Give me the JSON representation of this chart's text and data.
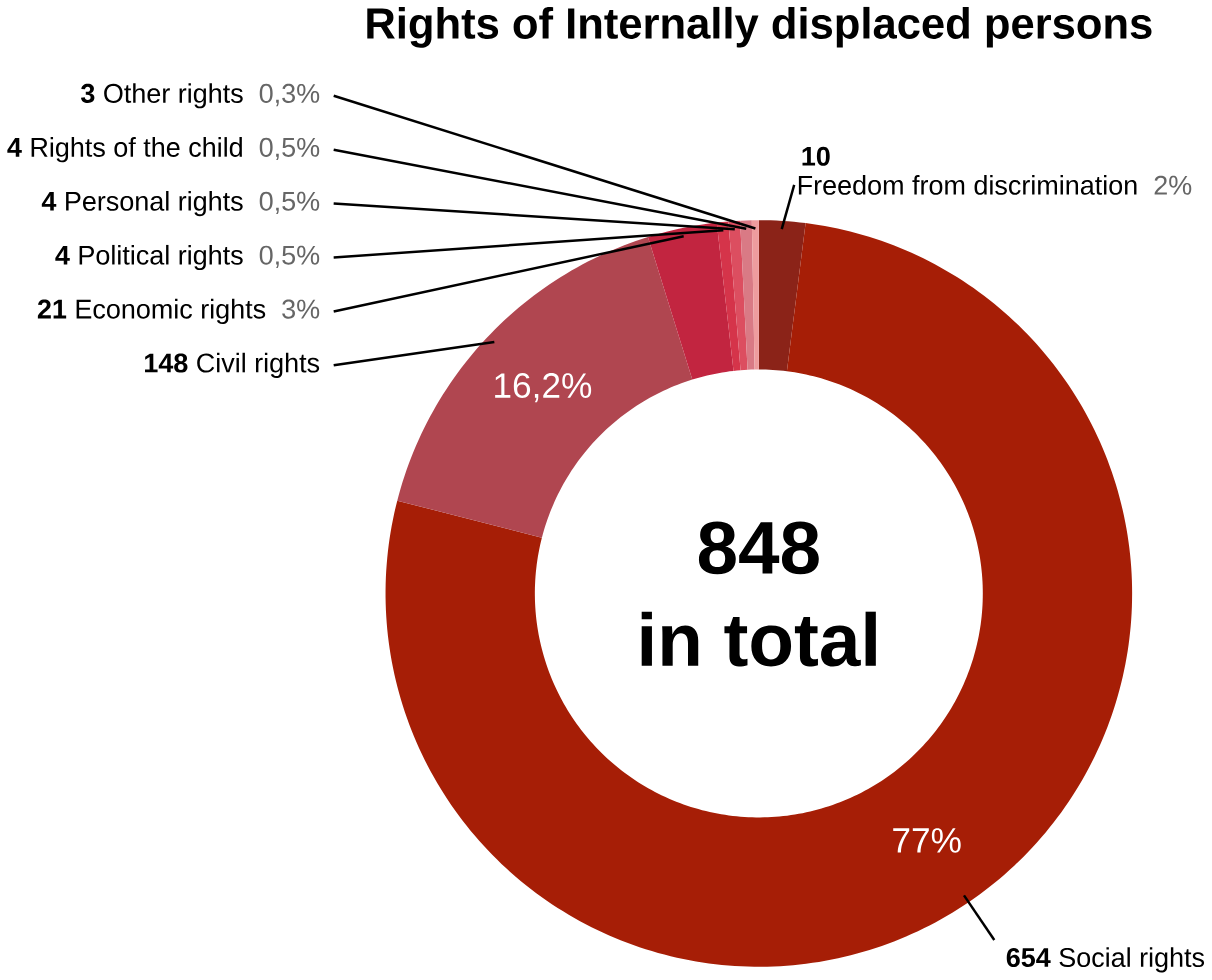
{
  "chart_data": {
    "type": "donut",
    "title": "Rights of Internally displaced persons",
    "categories": [
      "Freedom from discrimination",
      "Social rights",
      "Civil rights",
      "Economic rights",
      "Political rights",
      "Personal rights",
      "Rights of the child",
      "Other rights"
    ],
    "values": [
      2,
      77,
      16.2,
      3,
      0.5,
      0.5,
      0.5,
      0.3
    ],
    "value_labels": [
      "2%",
      "77%",
      "16,2%",
      "3%",
      "0,5%",
      "0,5%",
      "0,5%",
      "0,3%"
    ],
    "colors": [
      "#8b2318",
      "#a61e06",
      "#b04650",
      "#c22540",
      "#d5344a",
      "#dc4e60",
      "#d97a85",
      "#ee9c9e"
    ],
    "annotations": [
      "848",
      "in total",
      "10",
      "654",
      "148",
      "21",
      "4",
      "4",
      "4",
      "3"
    ]
  }
}
